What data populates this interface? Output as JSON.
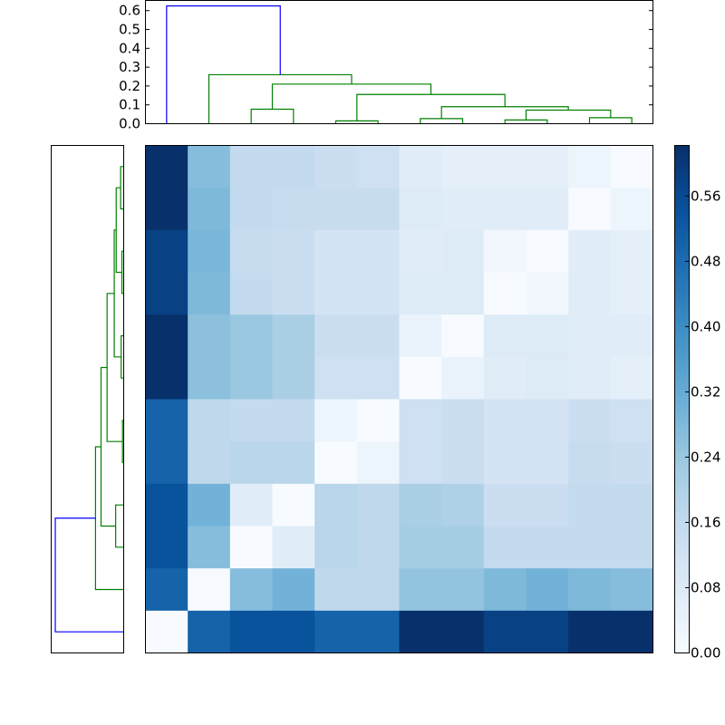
{
  "chart_data": [
    {
      "type": "dendrogram",
      "name": "top-dendrogram",
      "orientation": "top",
      "ylim": [
        0,
        0.654
      ],
      "yticks": [
        "0.0",
        "0.1",
        "0.2",
        "0.3",
        "0.4",
        "0.5",
        "0.6"
      ],
      "ytick_values": [
        0.0,
        0.1,
        0.2,
        0.3,
        0.4,
        0.5,
        0.6
      ],
      "leaf_count": 12,
      "links": [
        {
          "left": 2,
          "right": 3,
          "height": 0.077,
          "color": "#008000"
        },
        {
          "left": 4,
          "right": 5,
          "height": 0.015,
          "color": "#008000"
        },
        {
          "left": 6,
          "right": 7,
          "height": 0.027,
          "color": "#008000"
        },
        {
          "left": 8,
          "right": 9,
          "height": 0.02,
          "color": "#008000"
        },
        {
          "left": 10,
          "right": 11,
          "height": 0.032,
          "color": "#008000"
        },
        {
          "left": "8-9",
          "right": "10-11",
          "height": 0.072,
          "color": "#008000"
        },
        {
          "left": "6-7",
          "right": "8-11",
          "height": 0.09,
          "color": "#008000"
        },
        {
          "left": "4-5",
          "right": "6-11",
          "height": 0.155,
          "color": "#008000"
        },
        {
          "left": "2-3",
          "right": "4-11",
          "height": 0.21,
          "color": "#008000"
        },
        {
          "left": 1,
          "right": "2-11",
          "height": 0.26,
          "color": "#008000"
        },
        {
          "left": 0,
          "right": "1-11",
          "height": 0.625,
          "color": "#0000ff"
        }
      ]
    },
    {
      "type": "dendrogram",
      "name": "left-dendrogram",
      "orientation": "left",
      "xlim": [
        0.658,
        0
      ],
      "leaf_order_top_to_bottom": [
        11,
        10,
        9,
        8,
        7,
        6,
        5,
        4,
        3,
        2,
        1,
        0
      ],
      "note_links": "same tree as top dendrogram, mirrored"
    },
    {
      "type": "heatmap",
      "name": "distance-matrix",
      "colormap": "Blues",
      "vmin": 0.0,
      "vmax": 0.622,
      "row_leaves_top_to_bottom": [
        11,
        10,
        9,
        8,
        7,
        6,
        5,
        4,
        3,
        2,
        1,
        0
      ],
      "col_leaves_left_to_right": [
        0,
        1,
        2,
        3,
        4,
        5,
        6,
        7,
        8,
        9,
        10,
        11
      ],
      "values": [
        [
          0.62,
          0.27,
          0.16,
          0.16,
          0.14,
          0.13,
          0.07,
          0.06,
          0.06,
          0.06,
          0.03,
          0.0
        ],
        [
          0.62,
          0.28,
          0.16,
          0.15,
          0.15,
          0.15,
          0.08,
          0.07,
          0.07,
          0.07,
          0.0,
          0.03
        ],
        [
          0.58,
          0.29,
          0.15,
          0.14,
          0.11,
          0.11,
          0.07,
          0.08,
          0.02,
          0.0,
          0.07,
          0.06
        ],
        [
          0.58,
          0.28,
          0.16,
          0.14,
          0.11,
          0.11,
          0.08,
          0.08,
          0.0,
          0.02,
          0.07,
          0.06
        ],
        [
          0.62,
          0.26,
          0.24,
          0.21,
          0.14,
          0.14,
          0.04,
          0.0,
          0.08,
          0.08,
          0.07,
          0.07
        ],
        [
          0.62,
          0.26,
          0.24,
          0.21,
          0.13,
          0.13,
          0.0,
          0.04,
          0.07,
          0.08,
          0.07,
          0.06
        ],
        [
          0.5,
          0.17,
          0.16,
          0.16,
          0.03,
          0.0,
          0.13,
          0.14,
          0.11,
          0.11,
          0.14,
          0.13
        ],
        [
          0.5,
          0.17,
          0.18,
          0.18,
          0.0,
          0.03,
          0.13,
          0.14,
          0.11,
          0.11,
          0.15,
          0.14
        ],
        [
          0.54,
          0.3,
          0.07,
          0.0,
          0.18,
          0.17,
          0.21,
          0.2,
          0.14,
          0.14,
          0.16,
          0.16
        ],
        [
          0.54,
          0.27,
          0.0,
          0.07,
          0.18,
          0.17,
          0.22,
          0.22,
          0.16,
          0.16,
          0.16,
          0.16
        ],
        [
          0.5,
          0.0,
          0.27,
          0.3,
          0.17,
          0.17,
          0.25,
          0.25,
          0.28,
          0.3,
          0.28,
          0.27
        ],
        [
          0.0,
          0.5,
          0.54,
          0.54,
          0.5,
          0.5,
          0.62,
          0.62,
          0.58,
          0.58,
          0.62,
          0.62
        ]
      ]
    },
    {
      "type": "colorbar",
      "name": "colorbar",
      "colormap": "Blues",
      "range": [
        0.0,
        0.622
      ],
      "ticks": [
        "0.00",
        "0.08",
        "0.16",
        "0.24",
        "0.32",
        "0.40",
        "0.48",
        "0.56"
      ],
      "tick_values": [
        0.0,
        0.08,
        0.16,
        0.24,
        0.32,
        0.4,
        0.48,
        0.56
      ]
    }
  ],
  "colors": {
    "cluster_link": "#008000",
    "root_link": "#0000ff",
    "frame": "#000000"
  },
  "blues_stops": [
    "#f7fbff",
    "#deebf7",
    "#c6dbef",
    "#9ecae1",
    "#6baed6",
    "#4292c6",
    "#2171b5",
    "#08519c",
    "#08306b"
  ]
}
